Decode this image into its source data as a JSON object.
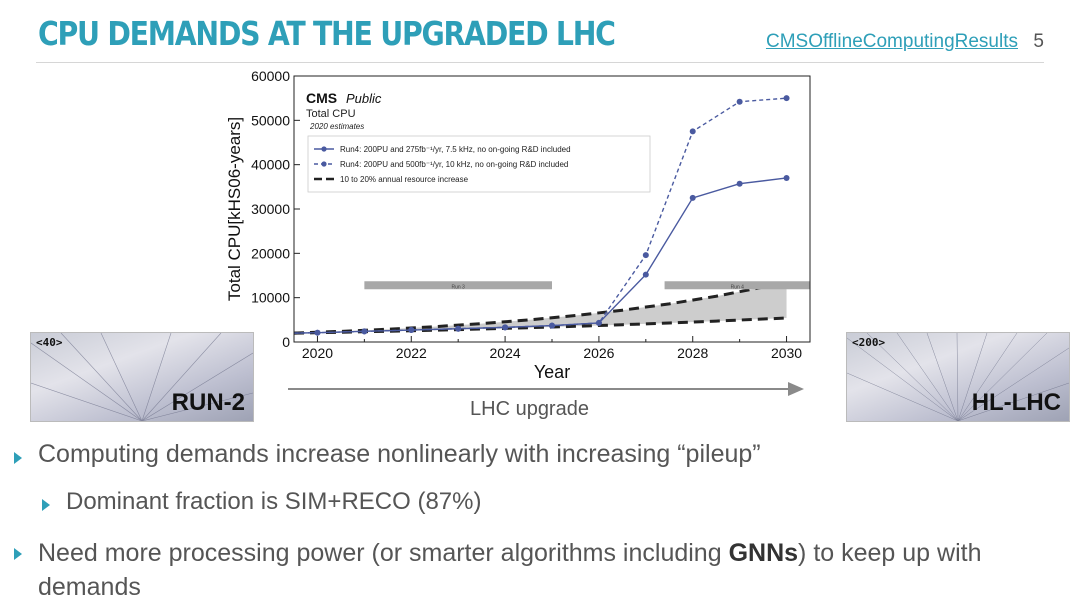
{
  "slide": {
    "title": "CPU DEMANDS AT THE UPGRADED LHC",
    "link": "CMSOfflineComputingResults",
    "page_number": "5",
    "accent_color": "#2e9fb8"
  },
  "images": {
    "left": {
      "pileup": "<40>",
      "label": "RUN-2"
    },
    "right": {
      "pileup": "<200>",
      "label": "HL-LHC"
    }
  },
  "arrow": {
    "label": "LHC upgrade"
  },
  "bullets": {
    "b1": "Computing demands increase nonlinearly with increasing “pileup”",
    "b2": "Dominant fraction is SIM+RECO (87%)",
    "b3_pre": "Need more processing power (or smarter algorithms including ",
    "b3_bold": "GNNs",
    "b3_post": ") to keep up with demands"
  },
  "chart_data": {
    "type": "line",
    "brand": "CMS",
    "brand_suffix": "Public",
    "title": "Total CPU",
    "subtitle": "2020 estimates",
    "xlabel": "Year",
    "ylabel": "Total CPU[kHS06-years]",
    "xlim": [
      2019.5,
      2030.5
    ],
    "ylim": [
      0,
      60000
    ],
    "xticks": [
      2020,
      2022,
      2024,
      2026,
      2028,
      2030
    ],
    "yticks": [
      0,
      10000,
      20000,
      30000,
      40000,
      50000,
      60000
    ],
    "grid": false,
    "legend_position": "top-left",
    "series": [
      {
        "name": "Run4: 200PU and 275fb⁻¹/yr, 7.5 kHz, no on-going R&D included",
        "style": "solid",
        "color": "#4a5aa0",
        "x": [
          2019.5,
          2020,
          2021,
          2022,
          2023,
          2024,
          2025,
          2026,
          2027,
          2028,
          2029,
          2030
        ],
        "y": [
          2000,
          2100,
          2400,
          2700,
          3000,
          3300,
          3700,
          4300,
          15200,
          32500,
          35700,
          37000
        ]
      },
      {
        "name": "Run4: 200PU and 500fb⁻¹/yr, 10 kHz, no on-going R&D included",
        "style": "dashed",
        "color": "#4a5aa0",
        "x": [
          2019.5,
          2020,
          2021,
          2022,
          2023,
          2024,
          2025,
          2026,
          2027,
          2028,
          2029,
          2030
        ],
        "y": [
          2000,
          2100,
          2400,
          2700,
          3000,
          3300,
          3700,
          4300,
          19600,
          47500,
          54200,
          55000
        ]
      }
    ],
    "band": {
      "name": "10 to 20% annual resource increase",
      "x": [
        2019.5,
        2020.5,
        2021.5,
        2022.5,
        2023.5,
        2024.5,
        2025.5,
        2026.5,
        2027.5,
        2028.5,
        2029.5,
        2030
      ],
      "lower": [
        2000,
        2200,
        2420,
        2660,
        2930,
        3220,
        3540,
        3900,
        4290,
        4720,
        5190,
        5400
      ],
      "upper": [
        2000,
        2400,
        2880,
        3460,
        4150,
        4980,
        5970,
        7170,
        8600,
        10320,
        12380,
        13600
      ],
      "color": "#c8c8c8"
    },
    "annotations": [
      {
        "text": "Run 3",
        "x_from": 2021,
        "x_to": 2025,
        "y": 12800
      },
      {
        "text": "Run 4",
        "x_from": 2027.4,
        "x_to": 2030.5,
        "y": 12800
      }
    ]
  }
}
